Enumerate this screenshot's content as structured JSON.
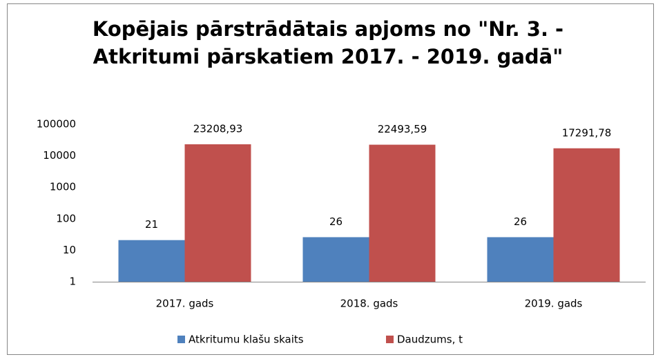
{
  "chart_data": {
    "type": "bar",
    "title": "Kopējais pārstrādātais apjoms no \"Nr. 3. - Atkritumi pārskatiem 2017. - 2019. gadā\"",
    "categories": [
      "2017. gads",
      "2018. gads",
      "2019. gads"
    ],
    "series": [
      {
        "name": "Atkritumu klašu skaits",
        "color": "#4f81bd",
        "values": [
          21,
          26,
          26
        ]
      },
      {
        "name": "Daudzums, t",
        "color": "#c0504d",
        "values": [
          23208.93,
          22493.59,
          17291.78
        ],
        "value_labels": [
          "23208,93",
          "22493,59",
          "17291,78"
        ]
      }
    ],
    "ylim": [
      1,
      100000
    ],
    "yticks": [
      1,
      10,
      100,
      1000,
      10000,
      100000
    ],
    "log_scale": true,
    "grid": false,
    "legend": "bottom"
  }
}
